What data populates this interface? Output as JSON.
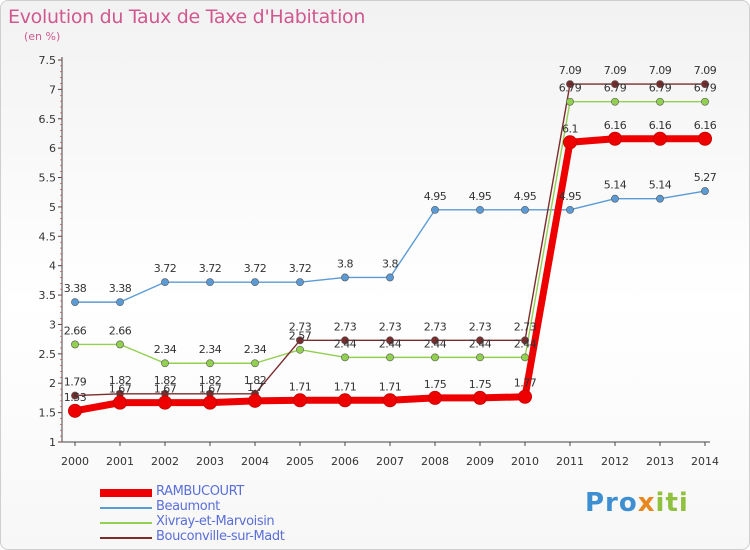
{
  "title": "Evolution du Taux de Taxe d'Habitation",
  "subtitle": "(en %)",
  "logo": {
    "part1": "Pro",
    "part2": "x",
    "part3": "iti"
  },
  "chart_data": {
    "type": "line",
    "title": "Evolution du Taux de Taxe d'Habitation",
    "ylabel": "(en %)",
    "xlabel": "",
    "x": [
      "2000",
      "2001",
      "2002",
      "2003",
      "2004",
      "2005",
      "2006",
      "2007",
      "2008",
      "2009",
      "2010",
      "2011",
      "2012",
      "2013",
      "2014"
    ],
    "ylim": [
      1,
      7.5
    ],
    "yticks": [
      "1",
      "1.5",
      "2",
      "2.5",
      "3",
      "3.5",
      "4",
      "4.5",
      "5",
      "5.5",
      "6",
      "6.5",
      "7",
      "7.5"
    ],
    "grid": false,
    "legend_position": "bottom-left",
    "series": [
      {
        "name": "RAMBUCOURT",
        "color": "#ee0000",
        "values": [
          1.53,
          1.67,
          1.67,
          1.67,
          1.7,
          1.71,
          1.71,
          1.71,
          1.75,
          1.75,
          1.77,
          6.1,
          6.16,
          6.16,
          6.16
        ],
        "labels": [
          "1.53",
          "1.67",
          "1.67",
          "1.67",
          "1.7",
          "1.71",
          "1.71",
          "1.71",
          "1.75",
          "1.75",
          "1.77",
          "6.1",
          "6.16",
          "6.16",
          "6.16"
        ]
      },
      {
        "name": "Beaumont",
        "color": "#5b9bd5",
        "values": [
          3.38,
          3.38,
          3.72,
          3.72,
          3.72,
          3.72,
          3.8,
          3.8,
          4.95,
          4.95,
          4.95,
          4.95,
          5.14,
          5.14,
          5.27
        ],
        "labels": [
          "3.38",
          "3.38",
          "3.72",
          "3.72",
          "3.72",
          "3.72",
          "3.8",
          "3.8",
          "4.95",
          "4.95",
          "4.95",
          "4.95",
          "5.14",
          "5.14",
          "5.27"
        ]
      },
      {
        "name": "Xivray-et-Marvoisin",
        "color": "#92d050",
        "values": [
          2.66,
          2.66,
          2.34,
          2.34,
          2.34,
          2.57,
          2.44,
          2.44,
          2.44,
          2.44,
          2.44,
          6.79,
          6.79,
          6.79,
          6.79
        ],
        "labels": [
          "2.66",
          "2.66",
          "2.34",
          "2.34",
          "2.34",
          "2.57",
          "2.44",
          "2.44",
          "2.44",
          "2.44",
          "2.44",
          "6.79",
          "6.79",
          "6.79",
          "6.79"
        ]
      },
      {
        "name": "Bouconville-sur-Madt",
        "color": "#7b2c2c",
        "values": [
          1.79,
          1.82,
          1.82,
          1.82,
          1.82,
          2.73,
          2.73,
          2.73,
          2.73,
          2.73,
          2.73,
          7.09,
          7.09,
          7.09,
          7.09
        ],
        "labels": [
          "1.79",
          "1.82",
          "1.82",
          "1.82",
          "1.82",
          "2.73",
          "2.73",
          "2.73",
          "2.73",
          "2.73",
          "2.73",
          "7.09",
          "7.09",
          "7.09",
          "7.09"
        ]
      }
    ]
  }
}
